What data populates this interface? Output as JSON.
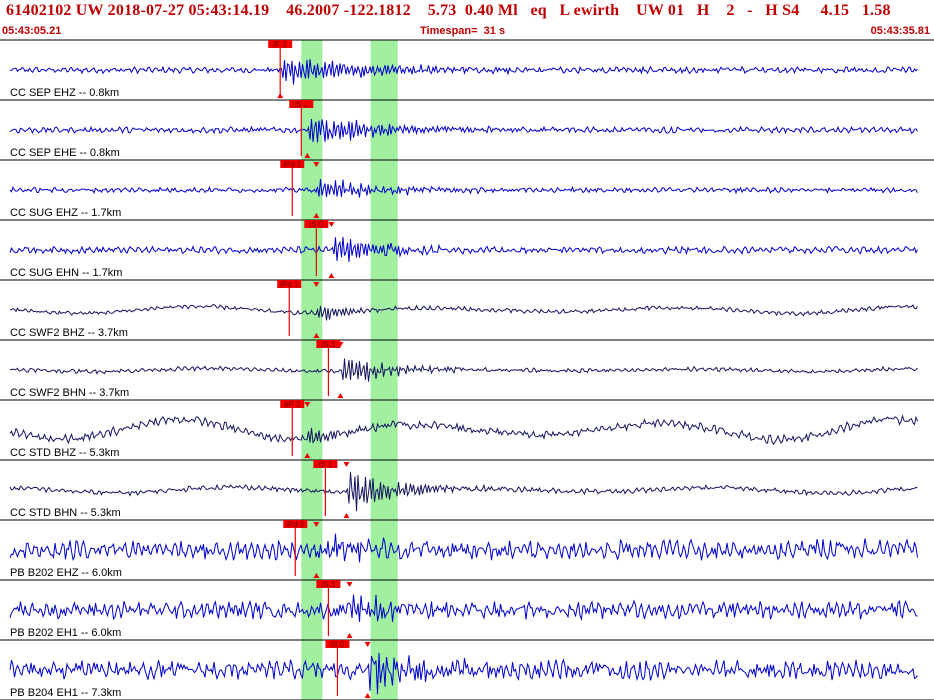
{
  "header": {
    "title": "61402102 UW 2018-07-27 05:43:14.19    46.2007 -122.1812    5.73  0.40 Ml   eq   L ewirth    UW 01   H    2   -   H S4     4.15   1.58",
    "start_time": "05:43:05.21",
    "timespan": "Timespan=  31 s",
    "end_time": "05:43:35.81"
  },
  "colors": {
    "header_text": "#c00000",
    "trace_blue": "#0000cc",
    "trace_dark": "#151560",
    "pick_red": "#ee0000",
    "phase_green": "#a0f0a0",
    "grid": "#000000"
  },
  "chart_data": {
    "type": "seismogram",
    "x_range_seconds": [
      0,
      31
    ],
    "phase_bands_seconds": [
      {
        "from": 10.0,
        "to": 10.7
      },
      {
        "from": 12.3,
        "to": 13.2
      }
    ],
    "traces": [
      {
        "label": "CC SEP EHZ -- 0.8km",
        "color": "blue",
        "pick": "iP 1",
        "pick_time": 9.3,
        "onset": 9.3,
        "amp": 0.55,
        "noise": 0.07,
        "long_period": 0.0,
        "coda": 0.012
      },
      {
        "label": "CC SEP EHE -- 0.8km",
        "color": "blue",
        "pick": "iS 1",
        "pick_time": 10.0,
        "onset": 10.2,
        "amp": 0.7,
        "noise": 0.07,
        "long_period": 0.0,
        "coda": 0.015
      },
      {
        "label": "CC SUG EHZ -- 1.7km",
        "color": "blue",
        "pick": "iPd 1",
        "pick_time": 9.7,
        "onset": 10.5,
        "amp": 0.5,
        "noise": 0.06,
        "long_period": 0.0,
        "coda": 0.018
      },
      {
        "label": "CC SUG EHN -- 1.7km",
        "color": "blue",
        "pick": "iS 0",
        "pick_time": 10.5,
        "onset": 11.0,
        "amp": 0.6,
        "noise": 0.08,
        "long_period": 0.0,
        "coda": 0.02
      },
      {
        "label": "CC SWF2 BHZ -- 3.7km",
        "color": "dark",
        "pick": "iPd 1",
        "pick_time": 9.6,
        "onset": 10.5,
        "amp": 0.45,
        "noise": 0.05,
        "long_period": 0.12,
        "coda": 0.04
      },
      {
        "label": "CC SWF2 BHN -- 3.7km",
        "color": "dark",
        "pick": "iS 1",
        "pick_time": 10.9,
        "onset": 11.3,
        "amp": 0.55,
        "noise": 0.05,
        "long_period": 0.05,
        "coda": 0.02
      },
      {
        "label": "CC STD BHZ -- 5.3km",
        "color": "dark",
        "pick": "eP 2",
        "pick_time": 9.7,
        "onset": 10.2,
        "amp": 0.5,
        "noise": 0.1,
        "long_period": 0.35,
        "coda": 0.05
      },
      {
        "label": "CC STD BHN -- 5.3km",
        "color": "dark",
        "pick": "iS 1",
        "pick_time": 10.8,
        "onset": 11.5,
        "amp": 0.8,
        "noise": 0.06,
        "long_period": 0.1,
        "coda": 0.02
      },
      {
        "label": "PB B202 EHZ -- 6.0km",
        "color": "blue",
        "pick": "iPd 1",
        "pick_time": 9.8,
        "onset": 10.5,
        "amp": 0.6,
        "noise": 0.22,
        "long_period": 0.05,
        "coda": 0.03
      },
      {
        "label": "PB B202 EH1 -- 6.0km",
        "color": "blue",
        "pick": "iS 1",
        "pick_time": 10.9,
        "onset": 11.6,
        "amp": 0.65,
        "noise": 0.2,
        "long_period": 0.0,
        "coda": 0.025
      },
      {
        "label": "PB B204 EH1 -- 7.3km",
        "color": "blue",
        "pick": "iS 0",
        "pick_time": 11.2,
        "onset": 12.2,
        "amp": 0.75,
        "noise": 0.22,
        "long_period": 0.0,
        "coda": 0.02
      }
    ]
  }
}
